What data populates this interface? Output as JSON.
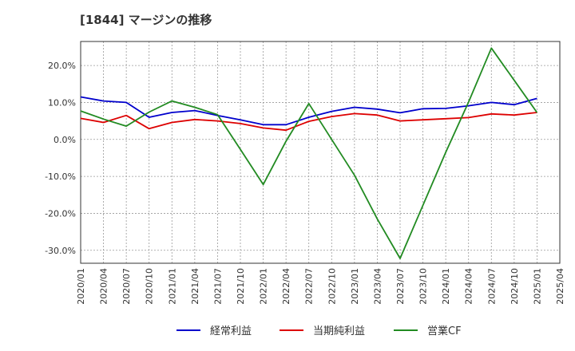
{
  "chart_data": {
    "type": "line",
    "title": "[1844]  マージンの推移",
    "xlabel": "",
    "ylabel": "",
    "x": [
      "2020/01",
      "2020/04",
      "2020/07",
      "2020/10",
      "2021/01",
      "2021/04",
      "2021/07",
      "2021/10",
      "2022/01",
      "2022/04",
      "2022/07",
      "2022/10",
      "2023/01",
      "2023/04",
      "2023/07",
      "2023/10",
      "2024/01",
      "2024/04",
      "2024/07",
      "2024/10",
      "2025/01",
      "2025/04"
    ],
    "ylim": [
      -33.5,
      26.5
    ],
    "yticks": [
      20,
      10,
      0,
      -10,
      -20,
      -30
    ],
    "ytick_labels": [
      "20.0%",
      "10.0%",
      "0.0%",
      "-10.0%",
      "-20.0%",
      "-30.0%"
    ],
    "grid": true,
    "legend_position": "bottom",
    "series": [
      {
        "name": "経常利益",
        "color": "#0000cc",
        "values": [
          11.5,
          10.4,
          10.0,
          6.0,
          7.3,
          7.8,
          6.5,
          5.3,
          4.0,
          4.0,
          6.0,
          7.6,
          8.7,
          8.2,
          7.2,
          8.3,
          8.4,
          9.1,
          10.0,
          9.4,
          11.1,
          null
        ]
      },
      {
        "name": "当期純利益",
        "color": "#dd0000",
        "values": [
          5.7,
          4.6,
          6.5,
          2.9,
          4.6,
          5.4,
          5.0,
          4.3,
          3.1,
          2.5,
          4.9,
          6.2,
          7.0,
          6.6,
          5.0,
          5.3,
          5.6,
          5.9,
          6.9,
          6.6,
          7.3,
          null
        ]
      },
      {
        "name": "営業CF",
        "color": "#228b22",
        "values": [
          7.7,
          5.5,
          3.6,
          7.4,
          10.4,
          8.7,
          6.7,
          -2.7,
          -12.2,
          -0.5,
          9.7,
          0.0,
          -9.7,
          -21.5,
          -32.2,
          -17.8,
          -3.5,
          10.1,
          24.7,
          16.0,
          7.3,
          null
        ]
      }
    ]
  }
}
